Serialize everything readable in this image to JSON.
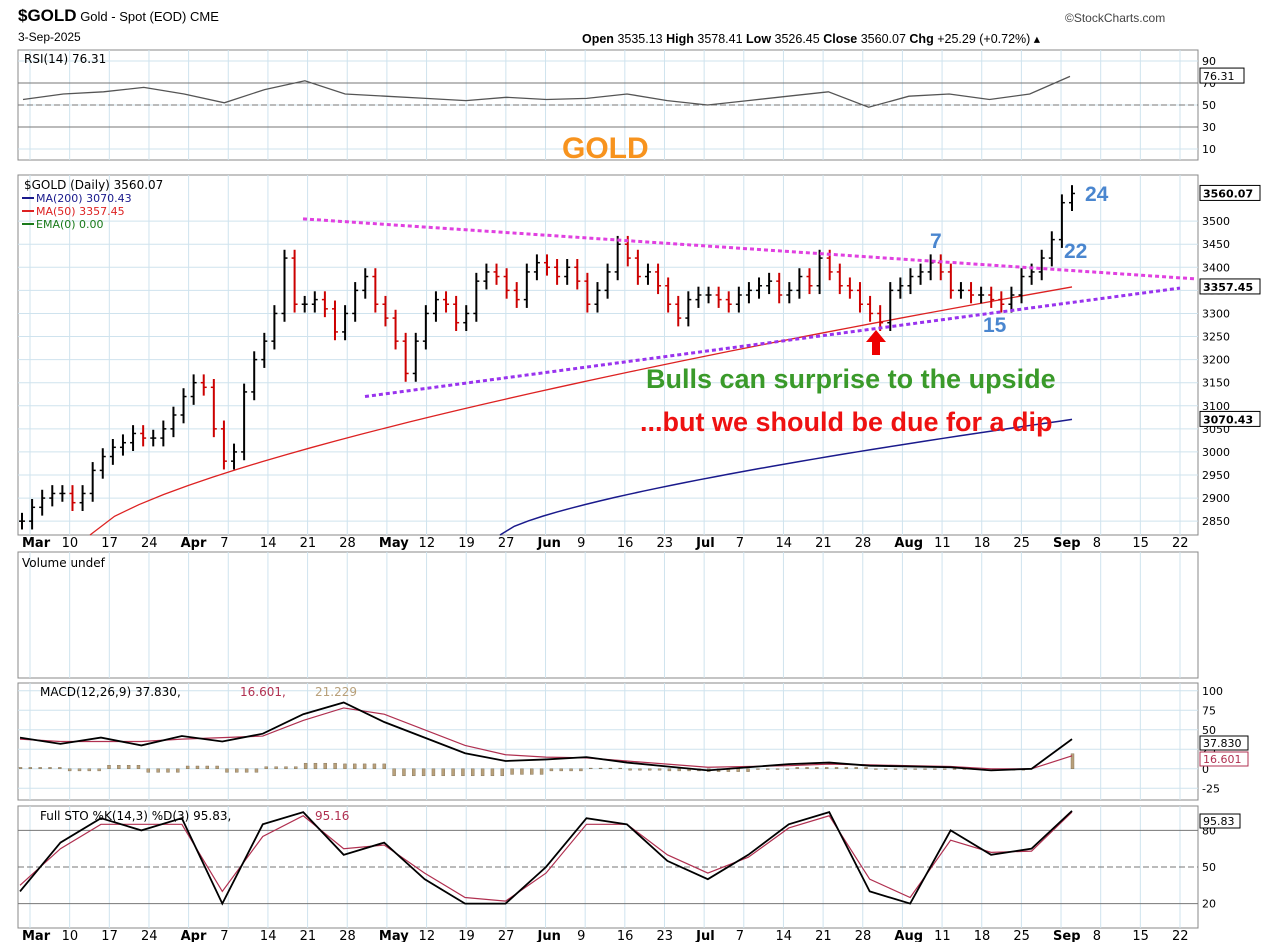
{
  "header": {
    "symbol": "$GOLD",
    "name": "Gold - Spot (EOD)",
    "exchange": "CME",
    "date": "3-Sep-2025",
    "source": "©StockCharts.com",
    "open_label": "Open",
    "open": "3535.13",
    "high_label": "High",
    "high": "3578.41",
    "low_label": "Low",
    "low": "3526.45",
    "close_label": "Close",
    "close": "3560.07",
    "chg_label": "Chg",
    "chg": "+25.29 (+0.72%)"
  },
  "annotations": {
    "gold_title": "GOLD",
    "bulls": "Bulls can surprise to the upside",
    "dip": "...but we should be due for a dip",
    "n7": "7",
    "n24": "24",
    "n22": "22",
    "n15": "15"
  },
  "colors": {
    "up": "#000000",
    "down": "#cc0000",
    "ma200": "#1a1a8c",
    "ma50": "#dd2222",
    "trend_upper": "#e040e0",
    "trend_lower": "#9933ee",
    "grid": "#cfe3ee",
    "gold_text": "#f7931e",
    "green_text": "#3a9a2a",
    "red_text": "#ee1111",
    "blue_text": "#4a86cf",
    "arrow": "#ee0000"
  },
  "chart_data": [
    {
      "type": "line",
      "panel": "RSI",
      "label": "RSI(14) 76.31",
      "ylim": [
        0,
        100
      ],
      "ticks": [
        "90",
        "70",
        "50",
        "30",
        "10"
      ],
      "last_value": "76.31",
      "x": [
        "Mar 3",
        "Mar 10",
        "Mar 17",
        "Mar 24",
        "Apr 1",
        "Apr 7",
        "Apr 14",
        "Apr 21",
        "Apr 28",
        "May 5",
        "May 12",
        "May 19",
        "May 27",
        "Jun 2",
        "Jun 9",
        "Jun 16",
        "Jun 23",
        "Jul 1",
        "Jul 7",
        "Jul 14",
        "Jul 21",
        "Jul 28",
        "Aug 4",
        "Aug 11",
        "Aug 18",
        "Aug 25",
        "Sep 3"
      ],
      "values": [
        55,
        60,
        62,
        66,
        60,
        52,
        64,
        72,
        60,
        58,
        56,
        54,
        57,
        55,
        56,
        60,
        54,
        50,
        54,
        58,
        62,
        48,
        58,
        60,
        55,
        60,
        76
      ]
    },
    {
      "type": "candlestick",
      "panel": "price",
      "legend": [
        "$GOLD (Daily) 3560.07",
        "MA(200) 3070.43",
        "MA(50) 3357.45",
        "EMA(0) 0.00"
      ],
      "y_ticks": [
        "3500",
        "3450",
        "3400",
        "3350",
        "3300",
        "3250",
        "3200",
        "3150",
        "3100",
        "3050",
        "3000",
        "2950",
        "2900",
        "2850"
      ],
      "ylim": [
        2820,
        3600
      ],
      "right_labels": {
        "close": "3560.07",
        "ma50": "3357.45",
        "ma200": "3070.43"
      },
      "x_tick_labels": [
        "Mar",
        "10",
        "17",
        "24",
        "Apr",
        "7",
        "14",
        "21",
        "28",
        "May",
        "12",
        "19",
        "27",
        "Jun",
        "9",
        "16",
        "23",
        "Jul",
        "7",
        "14",
        "21",
        "28",
        "Aug",
        "11",
        "18",
        "25",
        "Sep",
        "8",
        "15",
        "22"
      ],
      "close_series": [
        2850,
        2880,
        2900,
        2910,
        2910,
        2890,
        2910,
        2960,
        2990,
        3010,
        3020,
        3040,
        3030,
        3030,
        3050,
        3080,
        3120,
        3150,
        3140,
        3050,
        2980,
        3000,
        3130,
        3200,
        3240,
        3300,
        3420,
        3320,
        3320,
        3330,
        3310,
        3260,
        3300,
        3350,
        3380,
        3320,
        3290,
        3240,
        3170,
        3240,
        3300,
        3330,
        3320,
        3280,
        3300,
        3370,
        3390,
        3380,
        3350,
        3330,
        3390,
        3410,
        3400,
        3380,
        3400,
        3370,
        3320,
        3350,
        3390,
        3450,
        3420,
        3380,
        3390,
        3360,
        3320,
        3290,
        3330,
        3340,
        3340,
        3330,
        3320,
        3340,
        3350,
        3360,
        3370,
        3340,
        3350,
        3380,
        3360,
        3420,
        3390,
        3360,
        3350,
        3320,
        3300,
        3280,
        3350,
        3360,
        3380,
        3390,
        3410,
        3390,
        3350,
        3350,
        3340,
        3340,
        3330,
        3320,
        3340,
        3380,
        3390,
        3420,
        3460,
        3540,
        3560
      ],
      "ma50_start": 2820,
      "ma50_end": 3357.45,
      "ma200_start": 2820,
      "ma200_end": 3070.43,
      "trendline_upper": {
        "from": [
          "Apr 21",
          3505
        ],
        "to": [
          "Sep 22",
          3375
        ]
      },
      "trendline_lower": {
        "from": [
          "Apr 28",
          3120
        ],
        "to": [
          "Sep 22",
          3355
        ]
      }
    },
    {
      "type": "bar",
      "panel": "volume",
      "label": "Volume undef",
      "values": []
    },
    {
      "type": "line",
      "panel": "MACD",
      "label_prefix": "MACD(12,26,9)",
      "macd": "37.830",
      "signal": "16.601",
      "hist": "21.229",
      "ticks": [
        "100",
        "75",
        "50",
        "25",
        "0",
        "-25"
      ],
      "ylim": [
        -40,
        110
      ],
      "macd_values": [
        40,
        32,
        40,
        30,
        42,
        35,
        45,
        70,
        85,
        60,
        40,
        20,
        10,
        12,
        15,
        8,
        3,
        -2,
        2,
        6,
        8,
        4,
        3,
        2,
        -2,
        0,
        38
      ],
      "signal_values": [
        38,
        35,
        35,
        35,
        38,
        40,
        42,
        62,
        78,
        70,
        50,
        30,
        18,
        15,
        14,
        10,
        6,
        2,
        3,
        4,
        6,
        5,
        4,
        3,
        0,
        0,
        16.6
      ]
    },
    {
      "type": "line",
      "panel": "Full STO",
      "label_prefix": "Full STO %K(14,3) %D(3)",
      "k": "95.83",
      "d": "95.16",
      "ticks": [
        "80",
        "50",
        "20"
      ],
      "ylim": [
        0,
        100
      ],
      "k_values": [
        30,
        70,
        90,
        80,
        90,
        20,
        85,
        95,
        60,
        70,
        40,
        20,
        20,
        50,
        90,
        85,
        55,
        40,
        60,
        85,
        95,
        30,
        20,
        80,
        60,
        65,
        96
      ],
      "d_values": [
        35,
        65,
        85,
        85,
        85,
        30,
        75,
        92,
        65,
        68,
        45,
        25,
        22,
        45,
        85,
        85,
        60,
        45,
        58,
        82,
        92,
        40,
        25,
        72,
        62,
        63,
        95
      ]
    }
  ]
}
